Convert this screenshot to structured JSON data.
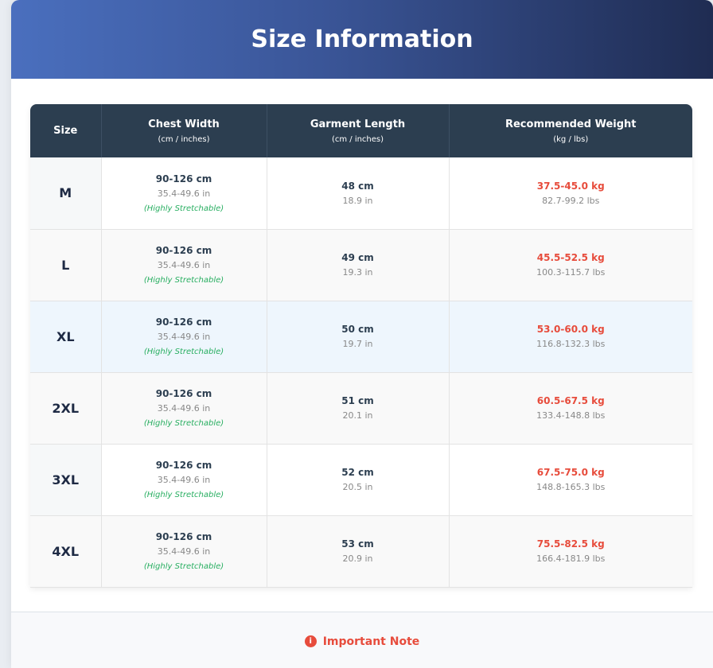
{
  "header": {
    "title": "Size Information"
  },
  "table": {
    "columns": [
      {
        "label": "Size",
        "sub": ""
      },
      {
        "label": "Chest Width",
        "sub": "(cm / inches)"
      },
      {
        "label": "Garment Length",
        "sub": "(cm / inches)"
      },
      {
        "label": "Recommended Weight",
        "sub": "(kg / lbs)"
      }
    ],
    "rows": [
      {
        "size": "M",
        "chest_cm": "90-126 cm",
        "chest_in": "35.4-49.6 in",
        "chest_note": "(Highly Stretchable)",
        "length_cm": "48 cm",
        "length_in": "18.9 in",
        "weight_kg": "37.5-45.0 kg",
        "weight_lbs": "82.7-99.2 lbs"
      },
      {
        "size": "L",
        "chest_cm": "90-126 cm",
        "chest_in": "35.4-49.6 in",
        "chest_note": "(Highly Stretchable)",
        "length_cm": "49 cm",
        "length_in": "19.3 in",
        "weight_kg": "45.5-52.5 kg",
        "weight_lbs": "100.3-115.7 lbs"
      },
      {
        "size": "XL",
        "chest_cm": "90-126 cm",
        "chest_in": "35.4-49.6 in",
        "chest_note": "(Highly Stretchable)",
        "length_cm": "50 cm",
        "length_in": "19.7 in",
        "weight_kg": "53.0-60.0 kg",
        "weight_lbs": "116.8-132.3 lbs"
      },
      {
        "size": "2XL",
        "chest_cm": "90-126 cm",
        "chest_in": "35.4-49.6 in",
        "chest_note": "(Highly Stretchable)",
        "length_cm": "51 cm",
        "length_in": "20.1 in",
        "weight_kg": "60.5-67.5 kg",
        "weight_lbs": "133.4-148.8 lbs"
      },
      {
        "size": "3XL",
        "chest_cm": "90-126 cm",
        "chest_in": "35.4-49.6 in",
        "chest_note": "(Highly Stretchable)",
        "length_cm": "52 cm",
        "length_in": "20.5 in",
        "weight_kg": "67.5-75.0 kg",
        "weight_lbs": "148.8-165.3 lbs"
      },
      {
        "size": "4XL",
        "chest_cm": "90-126 cm",
        "chest_in": "35.4-49.6 in",
        "chest_note": "(Highly Stretchable)",
        "length_cm": "53 cm",
        "length_in": "20.9 in",
        "weight_kg": "75.5-82.5 kg",
        "weight_lbs": "166.4-181.9 lbs"
      }
    ]
  },
  "footer": {
    "note_label": "Important Note",
    "note_icon": "info-circle-icon"
  },
  "colors": {
    "header_bg": "#2c3e50",
    "weight": "#e74c3c",
    "stretch": "#27ae60",
    "note": "#e74c3c"
  }
}
